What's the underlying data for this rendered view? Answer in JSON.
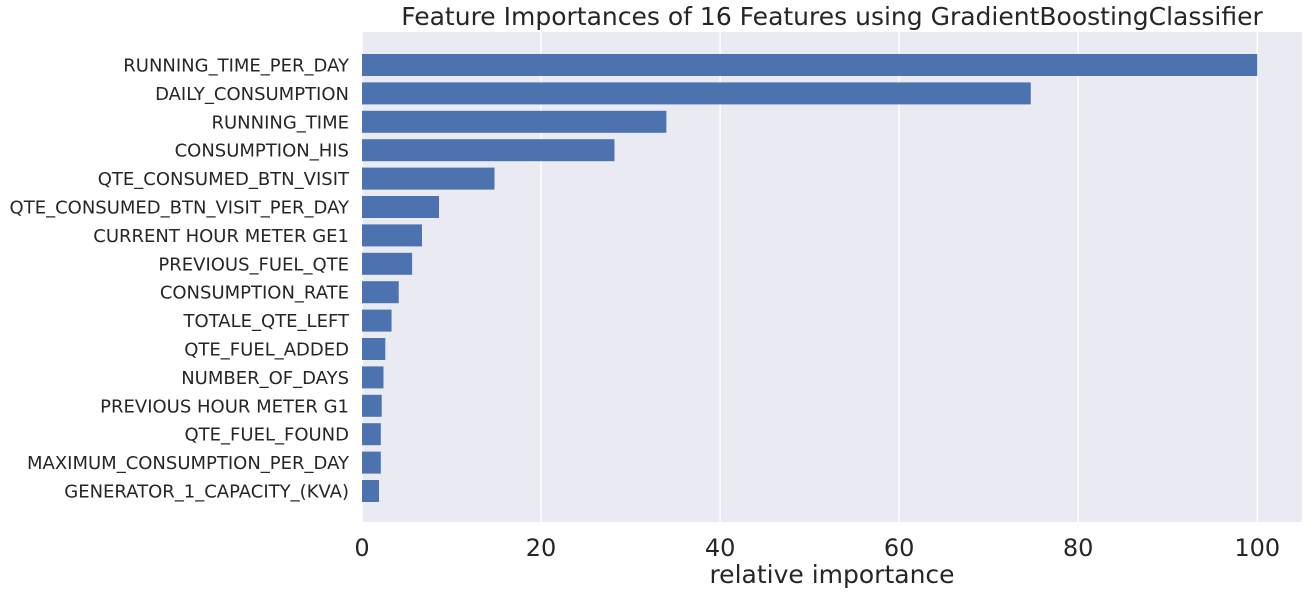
{
  "chart_data": {
    "type": "bar",
    "orientation": "horizontal",
    "title": "Feature Importances of 16 Features using GradientBoostingClassifier",
    "xlabel": "relative importance",
    "ylabel": "",
    "xlim": [
      0,
      105
    ],
    "xticks": [
      0,
      20,
      40,
      60,
      80,
      100
    ],
    "xtick_labels": [
      "0",
      "20",
      "40",
      "60",
      "80",
      "100"
    ],
    "grid": true,
    "categories": [
      "RUNNING_TIME_PER_DAY",
      "DAILY_CONSUMPTION",
      "RUNNING_TIME",
      "CONSUMPTION_HIS",
      "QTE_CONSUMED_BTN_VISIT",
      "QTE_CONSUMED_BTN_VISIT_PER_DAY",
      "CURRENT HOUR METER GE1",
      "PREVIOUS_FUEL_QTE",
      "CONSUMPTION_RATE",
      "TOTALE_QTE_LEFT",
      "QTE_FUEL_ADDED",
      "NUMBER_OF_DAYS",
      "PREVIOUS HOUR METER G1",
      "QTE_FUEL_FOUND",
      "MAXIMUM_CONSUMPTION_PER_DAY",
      "GENERATOR_1_CAPACITY_(KVA)"
    ],
    "values": [
      100,
      74.7,
      34.0,
      28.2,
      14.8,
      8.6,
      6.7,
      5.6,
      4.1,
      3.3,
      2.6,
      2.4,
      2.2,
      2.1,
      2.1,
      1.9
    ],
    "colors": {
      "bar": "#4c72b0",
      "plot_background": "#eaeaf2",
      "grid": "#ffffff",
      "text": "#262626"
    }
  }
}
